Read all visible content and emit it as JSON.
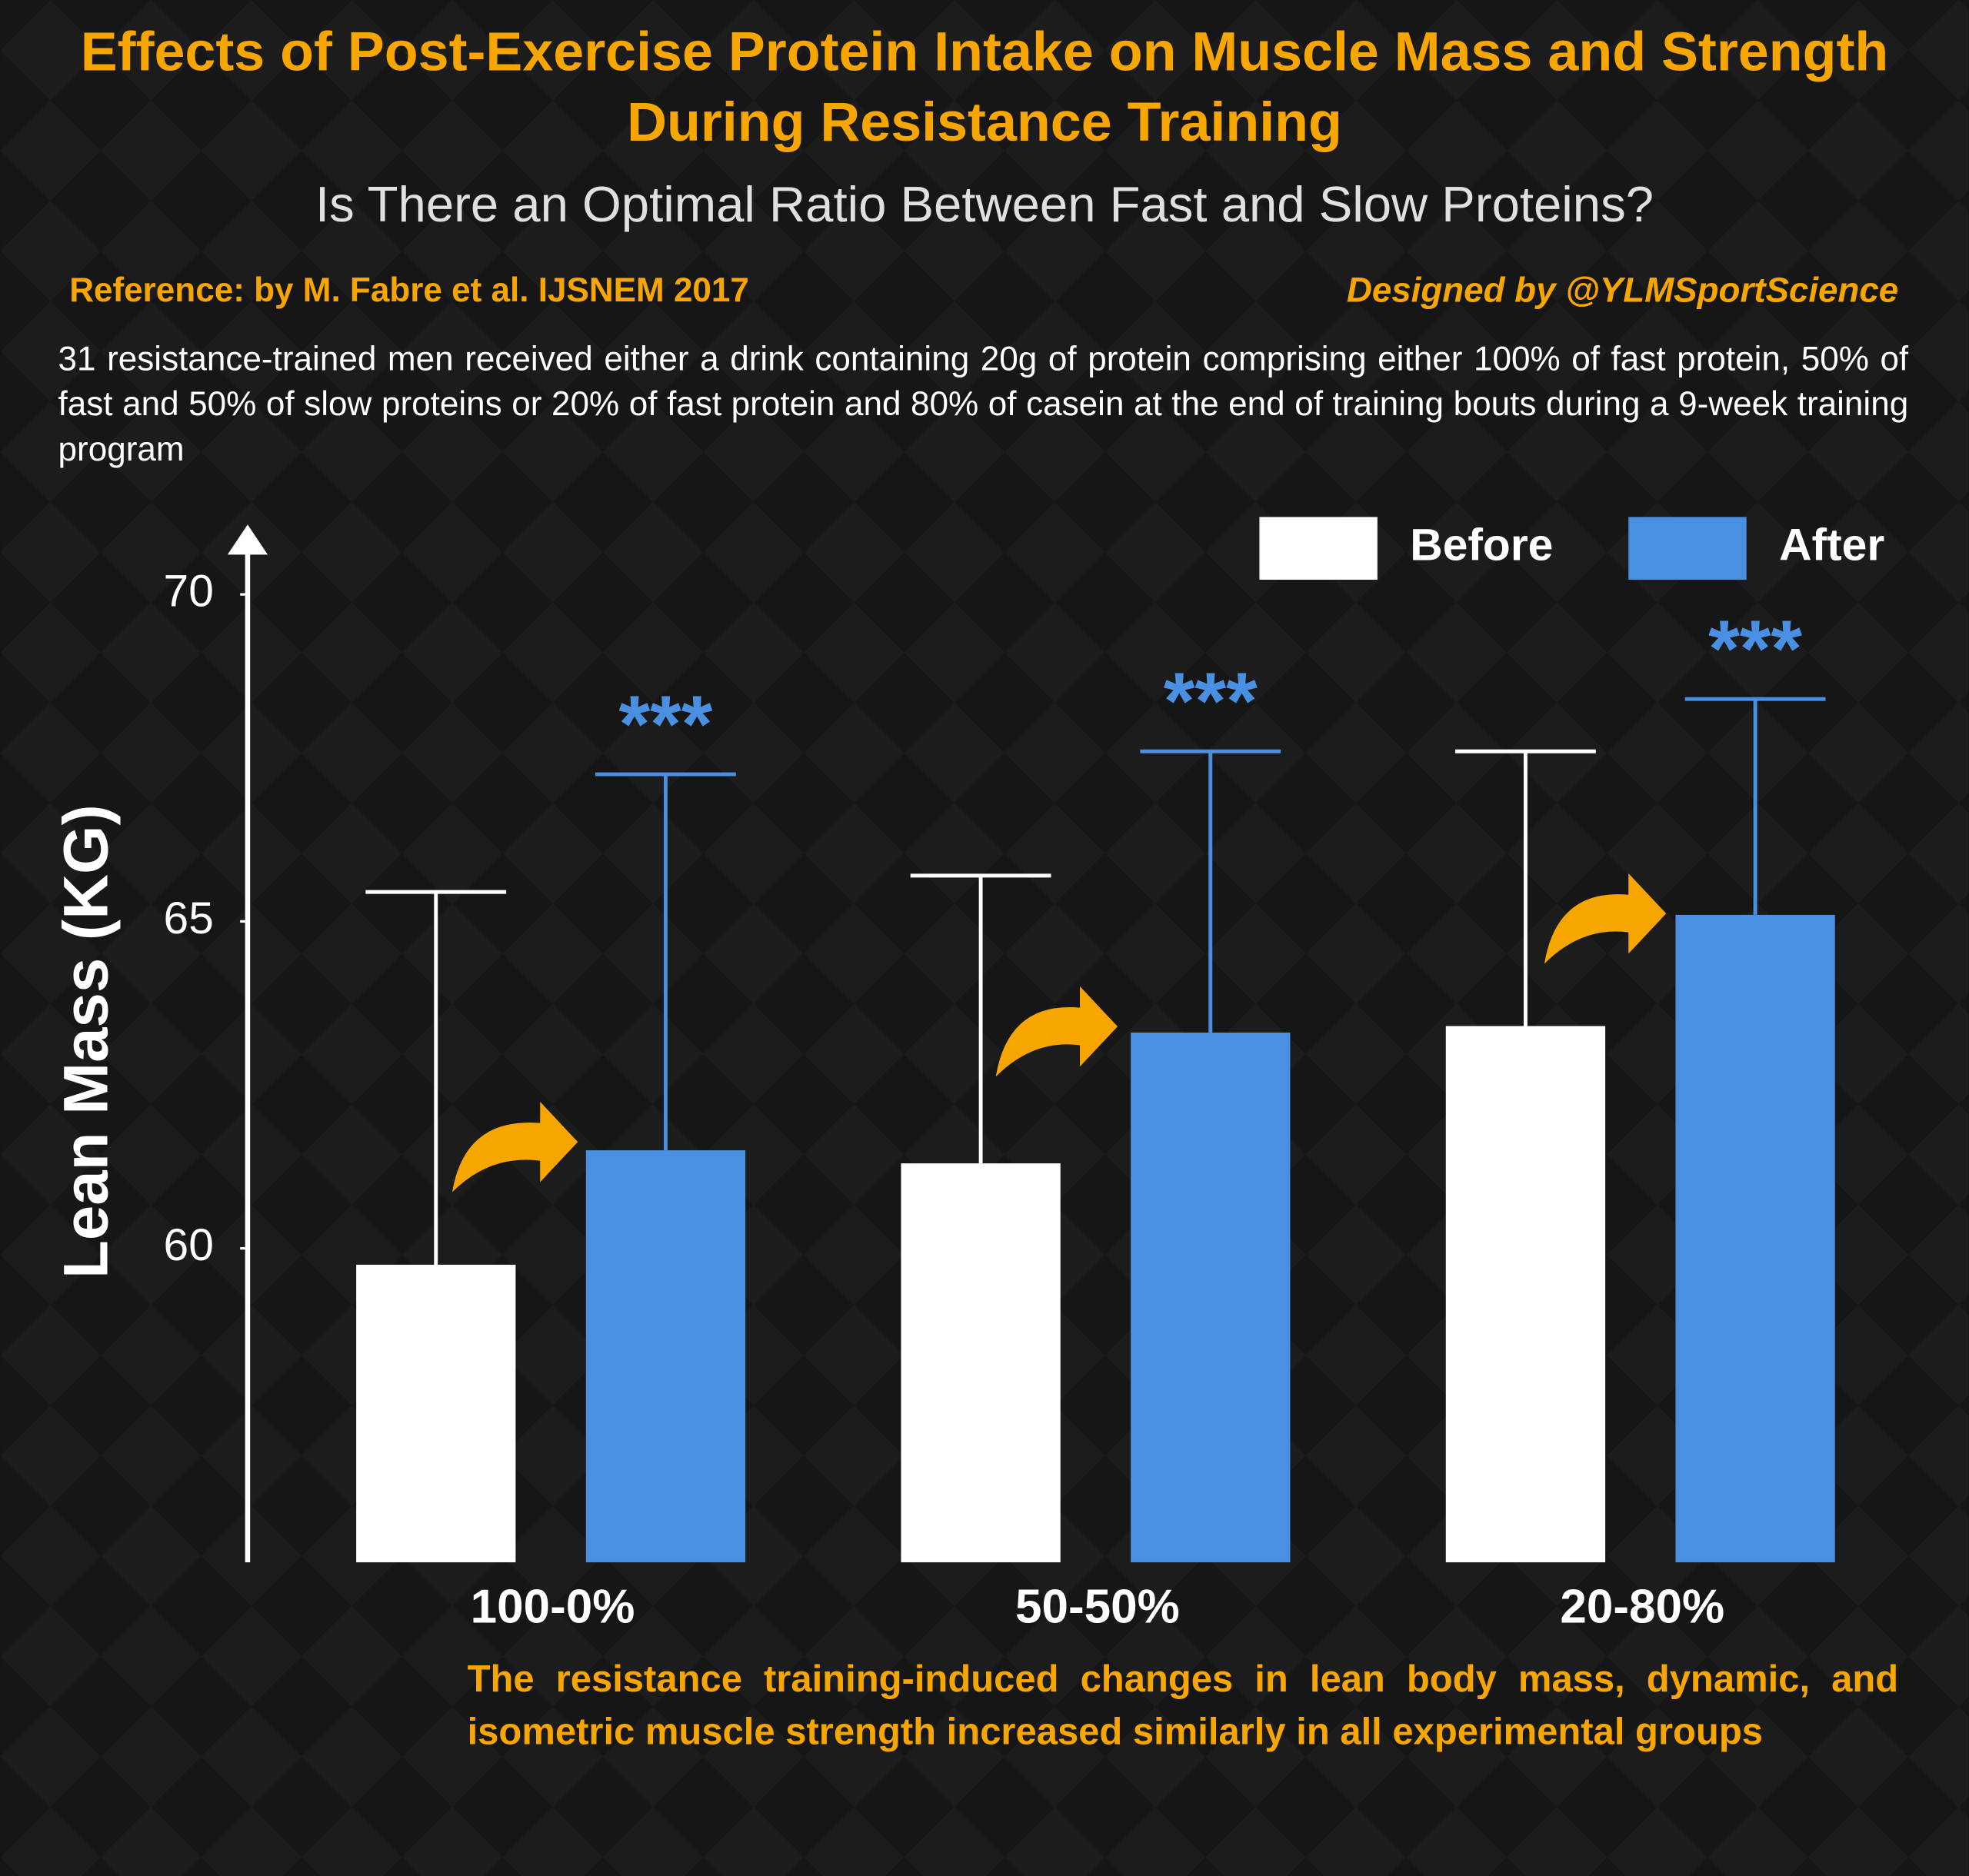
{
  "chart_data": {
    "type": "bar",
    "title": "Effects of Post-Exercise Protein Intake on Muscle Mass and Strength During Resistance Training",
    "subtitle": "Is There an Optimal Ratio Between Fast and Slow Proteins?",
    "reference": "Reference: by M. Fabre et al. IJSNEM 2017",
    "credit": "Designed by @YLMSportScience",
    "description": "31 resistance-trained men received either a drink containing 20g of protein comprising either 100% of fast protein, 50% of fast and 50% of slow proteins or 20% of fast protein and 80% of casein at the end of training bouts during a 9-week training program",
    "ylabel": "Lean Mass (KG)",
    "categories": [
      "100-0%",
      "50-50%",
      "20-80%"
    ],
    "series": [
      {
        "name": "Before",
        "color": "#ffffff",
        "values": [
          59.75,
          61.3,
          63.4
        ],
        "errors": [
          5.7,
          4.4,
          4.2
        ]
      },
      {
        "name": "After",
        "color": "#4a90e2",
        "values": [
          61.5,
          63.3,
          65.1
        ],
        "errors": [
          5.75,
          4.3,
          3.3
        ],
        "significance": [
          "***",
          "***",
          "***"
        ]
      }
    ],
    "ylim": [
      55.2,
      70.8
    ],
    "yticks": [
      60,
      65,
      70
    ],
    "conclusion": "The resistance training-induced changes in lean body mass, dynamic, and isometric muscle strength increased similarly in all experimental groups"
  }
}
